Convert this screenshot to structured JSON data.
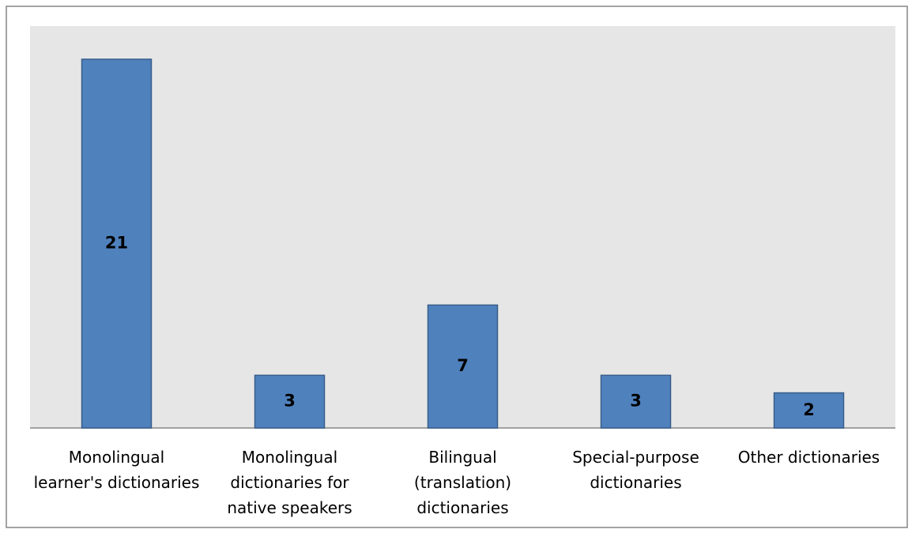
{
  "chart_data": {
    "type": "bar",
    "categories": [
      "Monolingual learner's dictionaries",
      "Monolingual dictionaries for native speakers",
      "Bilingual (translation) dictionaries",
      "Special-purpose dictionaries",
      "Other dictionaries"
    ],
    "values": [
      21,
      3,
      7,
      3,
      2
    ],
    "color": "#4f81bd",
    "grid": false
  }
}
